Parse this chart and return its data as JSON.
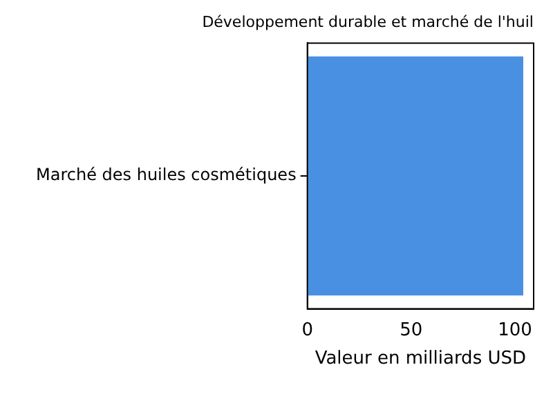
{
  "chart_data": {
    "type": "bar",
    "orientation": "horizontal",
    "title": "Développement durable et marché de l'huil",
    "xlabel": "Valeur en milliards USD",
    "categories": [
      "Marché des huiles cosmétiques"
    ],
    "values": [
      104
    ],
    "color": "#4a90e2",
    "xlim": [
      0,
      109
    ],
    "xticks": [
      0,
      50,
      100
    ],
    "grid": false,
    "legend": false
  }
}
